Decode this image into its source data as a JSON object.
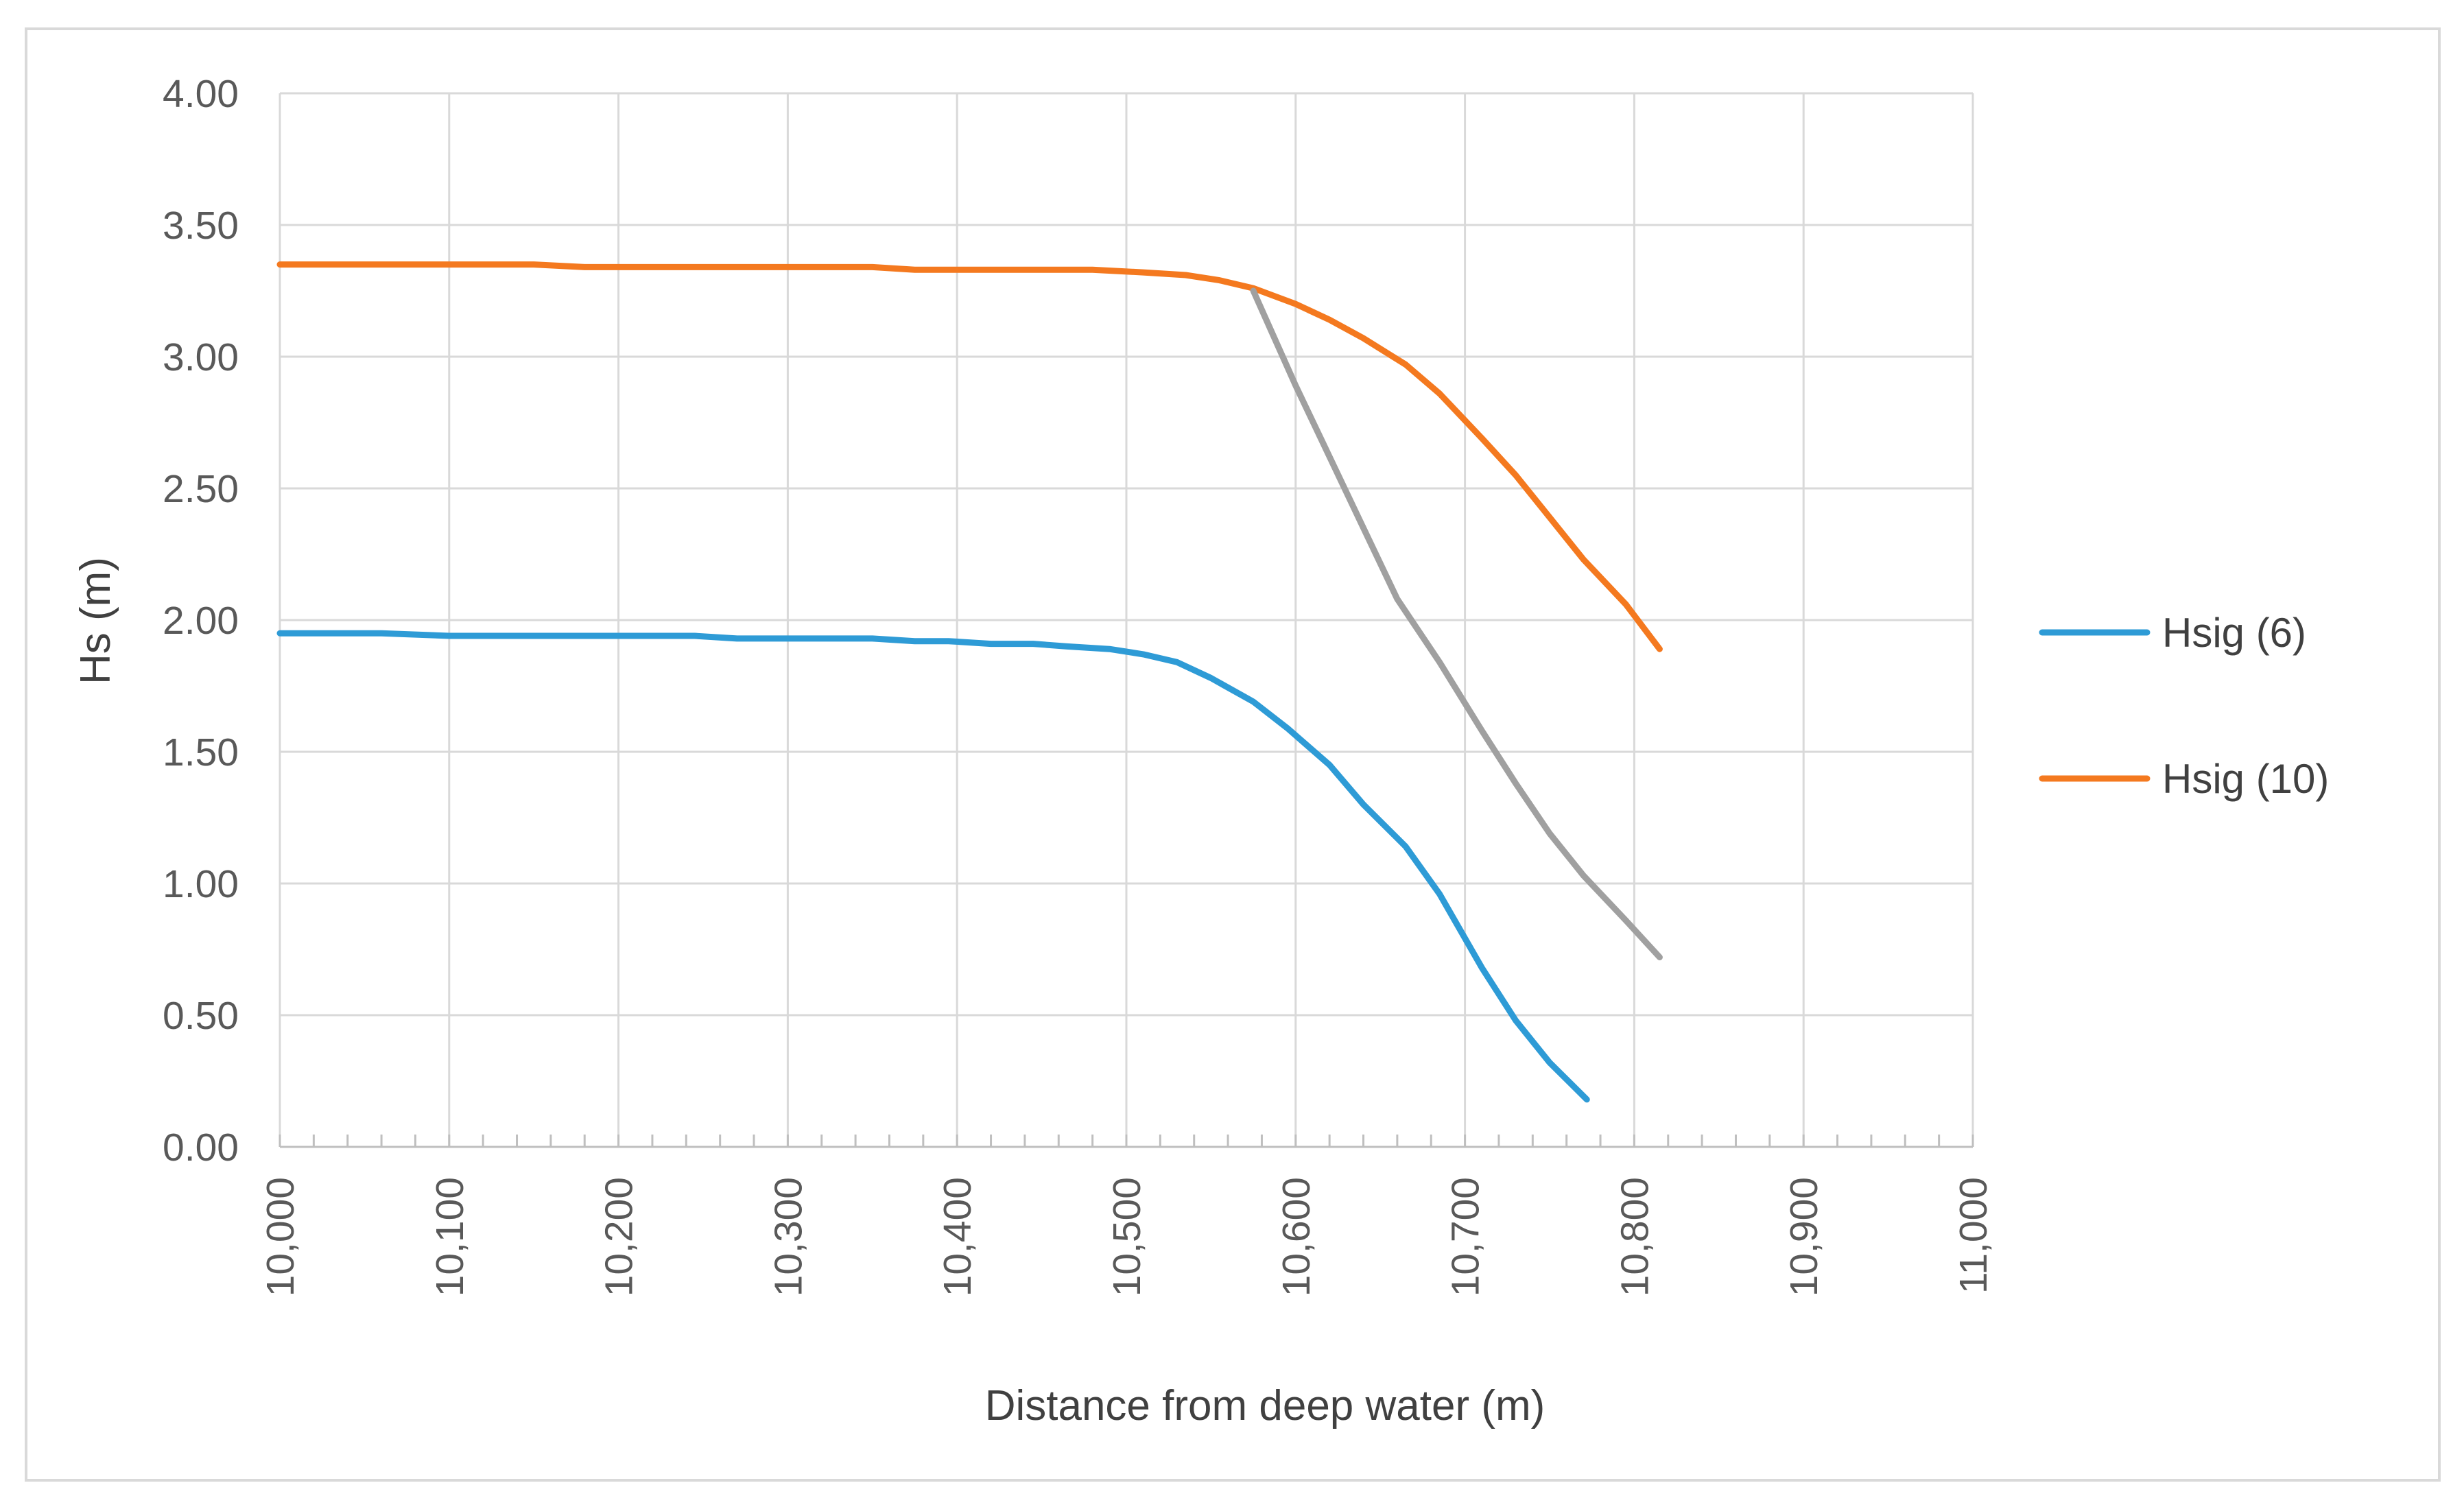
{
  "chart_data": {
    "type": "line",
    "title": "",
    "xlabel": "Distance from deep water (m)",
    "ylabel": "Hs (m)",
    "xlim": [
      10000,
      11000
    ],
    "ylim": [
      0,
      4
    ],
    "x_ticks": [
      10000,
      10100,
      10200,
      10300,
      10400,
      10500,
      10600,
      10700,
      10800,
      10900,
      11000
    ],
    "x_tick_labels": [
      "10,000",
      "10,100",
      "10,200",
      "10,300",
      "10,400",
      "10,500",
      "10,600",
      "10,700",
      "10,800",
      "10,900",
      "11,000"
    ],
    "x_minor_step": 20,
    "y_ticks": [
      0,
      0.5,
      1.0,
      1.5,
      2.0,
      2.5,
      3.0,
      3.5,
      4.0
    ],
    "y_tick_labels": [
      "0.00",
      "0.50",
      "1.00",
      "1.50",
      "2.00",
      "2.50",
      "3.00",
      "3.50",
      "4.00"
    ],
    "grid": true,
    "legend_position": "right",
    "series": [
      {
        "name": "Hsig (6)",
        "color": "#2E9BD6",
        "in_legend": true,
        "points": [
          [
            10000,
            1.95
          ],
          [
            10060,
            1.95
          ],
          [
            10100,
            1.94
          ],
          [
            10200,
            1.94
          ],
          [
            10245,
            1.94
          ],
          [
            10270,
            1.93
          ],
          [
            10350,
            1.93
          ],
          [
            10375,
            1.92
          ],
          [
            10395,
            1.92
          ],
          [
            10420,
            1.91
          ],
          [
            10445,
            1.91
          ],
          [
            10465,
            1.9
          ],
          [
            10490,
            1.89
          ],
          [
            10510,
            1.87
          ],
          [
            10530,
            1.84
          ],
          [
            10550,
            1.78
          ],
          [
            10575,
            1.69
          ],
          [
            10595,
            1.59
          ],
          [
            10620,
            1.45
          ],
          [
            10640,
            1.3
          ],
          [
            10665,
            1.14
          ],
          [
            10685,
            0.96
          ],
          [
            10710,
            0.68
          ],
          [
            10730,
            0.48
          ],
          [
            10750,
            0.32
          ],
          [
            10772,
            0.18
          ]
        ]
      },
      {
        "name": "Hsig (10)",
        "color": "#F4791F",
        "in_legend": true,
        "points": [
          [
            10000,
            3.35
          ],
          [
            10150,
            3.35
          ],
          [
            10180,
            3.34
          ],
          [
            10350,
            3.34
          ],
          [
            10375,
            3.33
          ],
          [
            10480,
            3.33
          ],
          [
            10510,
            3.32
          ],
          [
            10535,
            3.31
          ],
          [
            10555,
            3.29
          ],
          [
            10575,
            3.26
          ],
          [
            10600,
            3.2
          ],
          [
            10620,
            3.14
          ],
          [
            10640,
            3.07
          ],
          [
            10665,
            2.97
          ],
          [
            10685,
            2.86
          ],
          [
            10710,
            2.69
          ],
          [
            10730,
            2.55
          ],
          [
            10750,
            2.39
          ],
          [
            10770,
            2.23
          ],
          [
            10795,
            2.06
          ],
          [
            10815,
            1.89
          ]
        ]
      },
      {
        "name": "",
        "color": "#A0A0A0",
        "in_legend": false,
        "points": [
          [
            10575,
            3.25
          ],
          [
            10600,
            2.89
          ],
          [
            10620,
            2.62
          ],
          [
            10640,
            2.35
          ],
          [
            10660,
            2.08
          ],
          [
            10685,
            1.84
          ],
          [
            10710,
            1.58
          ],
          [
            10730,
            1.38
          ],
          [
            10750,
            1.19
          ],
          [
            10770,
            1.03
          ],
          [
            10795,
            0.86
          ],
          [
            10815,
            0.72
          ]
        ]
      }
    ]
  }
}
